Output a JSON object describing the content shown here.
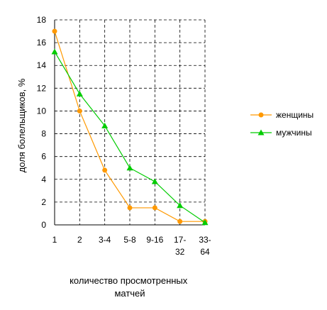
{
  "chart_data": {
    "type": "line",
    "categories": [
      [
        "1"
      ],
      [
        "2"
      ],
      [
        "3-4"
      ],
      [
        "5-8"
      ],
      [
        "9-16"
      ],
      [
        "17-",
        "32"
      ],
      [
        "33-",
        "64"
      ]
    ],
    "series": [
      {
        "name": "женщины",
        "color": "#ff9900",
        "marker": "circle",
        "values": [
          17.0,
          10.0,
          4.8,
          1.5,
          1.5,
          0.3,
          0.3
        ]
      },
      {
        "name": "мужчины",
        "color": "#00cc00",
        "marker": "triangle",
        "values": [
          15.2,
          11.5,
          8.7,
          5.0,
          3.8,
          1.7,
          0.2
        ]
      }
    ],
    "y_ticks": [
      "0",
      "2",
      "4",
      "6",
      "8",
      "10",
      "12",
      "14",
      "16",
      "18"
    ],
    "ylim": [
      0,
      18
    ],
    "ylabel": "доля болельщиков, %",
    "xlabel": [
      "количество просмотренных",
      "матчей"
    ],
    "grid": true,
    "legend_position": "right"
  }
}
